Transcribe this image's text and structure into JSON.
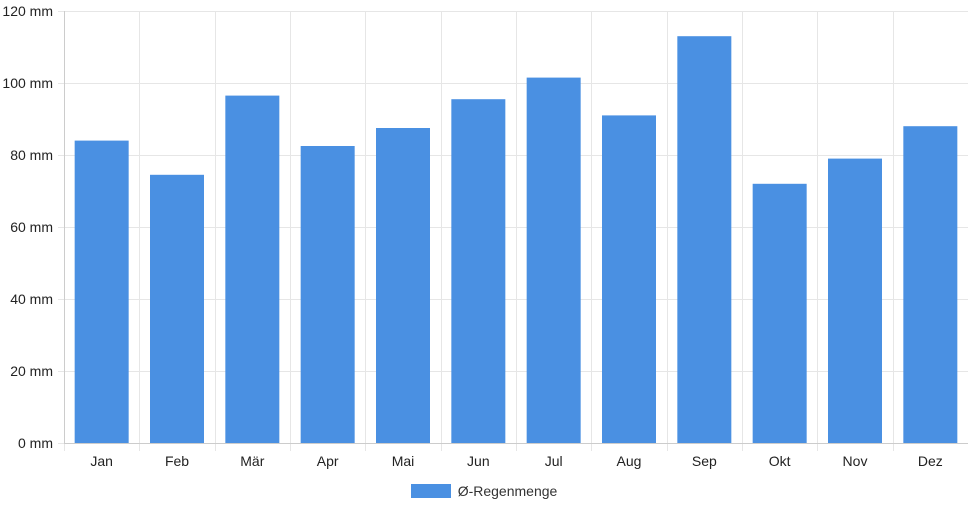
{
  "chart_data": {
    "type": "bar",
    "categories": [
      "Jan",
      "Feb",
      "Mär",
      "Apr",
      "Mai",
      "Jun",
      "Jul",
      "Aug",
      "Sep",
      "Okt",
      "Nov",
      "Dez"
    ],
    "series": [
      {
        "name": "Ø-Regenmenge",
        "values": [
          84,
          74.5,
          96.5,
          82.5,
          87.5,
          95.5,
          101.5,
          91,
          113,
          72,
          79,
          88
        ]
      }
    ],
    "y_tick_labels": [
      "0 mm",
      "20 mm",
      "40 mm",
      "60 mm",
      "80 mm",
      "100 mm",
      "120 mm"
    ],
    "ylim": [
      0,
      120
    ],
    "y_step": 20,
    "unit": "mm",
    "grid": true,
    "legend_position": "bottom",
    "colors": {
      "bar": "#4a90e2",
      "grid": "#e6e6e6",
      "axis": "#cccccc",
      "text": "#222222"
    }
  }
}
